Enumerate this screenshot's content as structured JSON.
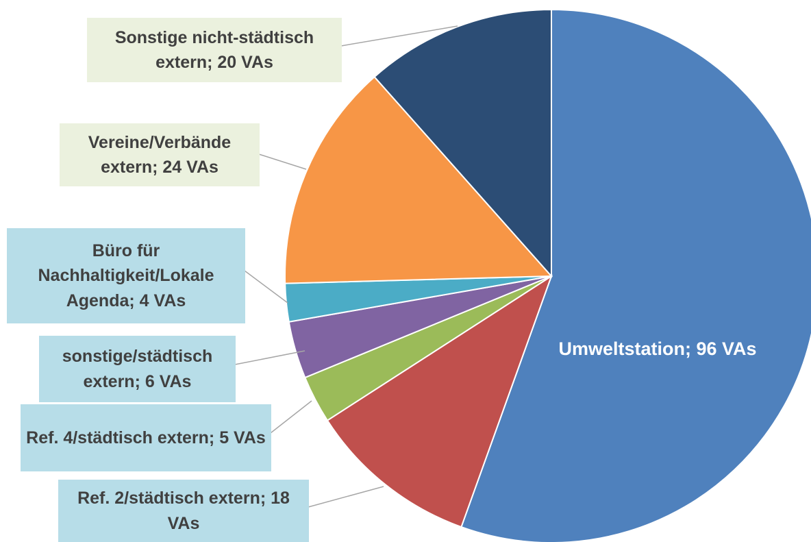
{
  "chart_data": {
    "type": "pie",
    "categories": [
      "Umweltstation; 96 VAs",
      "Ref. 2/städtisch extern; 18 VAs",
      "Ref. 4/städtisch extern; 5 VAs",
      "sonstige/städtisch extern; 6 VAs",
      "Büro für Nachhaltigkeit/Lokale Agenda; 4 VAs",
      "Vereine/Verbände extern; 24 VAs",
      "Sonstige nicht-städtisch extern; 20 VAs"
    ],
    "values": [
      96,
      18,
      5,
      6,
      4,
      24,
      20
    ],
    "colors": [
      "#4F81BD",
      "#C0504D",
      "#9BBB59",
      "#8064A2",
      "#4BACC6",
      "#F79646",
      "#2C4D75"
    ]
  }
}
